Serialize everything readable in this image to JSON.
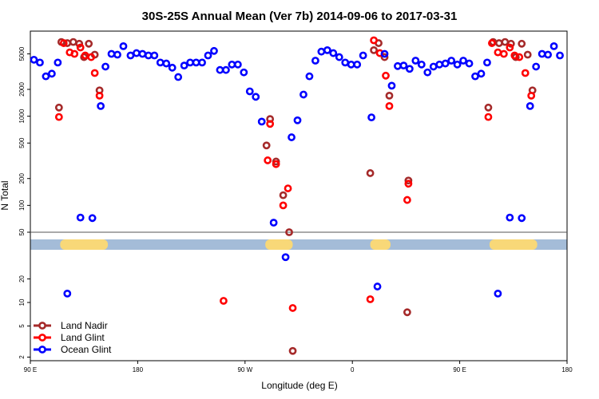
{
  "chart_data": {
    "type": "scatter",
    "title": "30S-25S Annual Mean (Ver 7b)   2014-09-06 to 2017-03-31",
    "xlabel": "Longitude (deg E)",
    "ylabel": "N Total",
    "x_ticks": [
      {
        "lon": -270,
        "label": "90 E"
      },
      {
        "lon": -180,
        "label": "180"
      },
      {
        "lon": -90,
        "label": "90 W"
      },
      {
        "lon": 0,
        "label": "0"
      },
      {
        "lon": 90,
        "label": "90 E"
      },
      {
        "lon": 180,
        "label": "180"
      }
    ],
    "xlim": [
      -270,
      180
    ],
    "y_scale": "log",
    "upper_panel": {
      "ylim": [
        50,
        9000
      ],
      "y_ticks": [
        {
          "value": 50,
          "label": "50"
        },
        {
          "value": 100,
          "label": "100"
        },
        {
          "value": 200,
          "label": "200"
        },
        {
          "value": 500,
          "label": "500"
        },
        {
          "value": 1000,
          "label": "1000"
        },
        {
          "value": 2000,
          "label": "2000"
        },
        {
          "value": 5000,
          "label": "5000"
        }
      ]
    },
    "lower_panel": {
      "ylim": [
        1.8,
        42
      ],
      "y_ticks": [
        {
          "value": 2,
          "label": "2"
        },
        {
          "value": 5,
          "label": "5"
        },
        {
          "value": 10,
          "label": "10"
        },
        {
          "value": 20,
          "label": "20"
        }
      ]
    },
    "land_sea_bar": {
      "ocean_color": "#a4bcd8",
      "land_color": "#f8d878",
      "land_segments": [
        [
          -245,
          -205
        ],
        [
          -73,
          -50
        ],
        [
          15,
          32
        ],
        [
          115,
          155
        ]
      ]
    },
    "legend_position": "bottom-left",
    "series": [
      {
        "name": "Land Nadir",
        "color": "#a52a2a",
        "points": [
          [
            -246,
            1250
          ],
          [
            -244,
            6800
          ],
          [
            -239,
            6600
          ],
          [
            -234,
            6800
          ],
          [
            -229,
            6500
          ],
          [
            -225,
            4600
          ],
          [
            -221,
            6500
          ],
          [
            -216,
            4900
          ],
          [
            -212,
            1950
          ],
          [
            -72,
            470
          ],
          [
            -69,
            930
          ],
          [
            -64,
            310
          ],
          [
            -58,
            130
          ],
          [
            -53,
            50
          ],
          [
            -50,
            2.4
          ],
          [
            15,
            230
          ],
          [
            18,
            5500
          ],
          [
            22,
            6600
          ],
          [
            27,
            4600
          ],
          [
            31,
            1700
          ],
          [
            46,
            7.5
          ],
          [
            47,
            190
          ],
          [
            114,
            1250
          ],
          [
            118,
            6800
          ],
          [
            123,
            6600
          ],
          [
            128,
            6800
          ],
          [
            133,
            6500
          ],
          [
            137,
            4600
          ],
          [
            142,
            6500
          ],
          [
            147,
            4900
          ],
          [
            151,
            1950
          ]
        ]
      },
      {
        "name": "Land Glint",
        "color": "#ff0000",
        "points": [
          [
            -246,
            980
          ],
          [
            -242,
            6600
          ],
          [
            -237,
            5200
          ],
          [
            -233,
            5000
          ],
          [
            -228,
            5900
          ],
          [
            -224,
            4800
          ],
          [
            -219,
            4600
          ],
          [
            -216,
            3050
          ],
          [
            -212,
            1700
          ],
          [
            -108,
            10.5
          ],
          [
            -71,
            320
          ],
          [
            -69,
            820
          ],
          [
            -64,
            290
          ],
          [
            -58,
            100
          ],
          [
            -54,
            155
          ],
          [
            -50,
            8.5
          ],
          [
            15,
            11
          ],
          [
            18,
            7100
          ],
          [
            23,
            5100
          ],
          [
            28,
            2850
          ],
          [
            31,
            1300
          ],
          [
            46,
            115
          ],
          [
            47,
            175
          ],
          [
            114,
            980
          ],
          [
            117,
            6600
          ],
          [
            122,
            5200
          ],
          [
            127,
            5000
          ],
          [
            132,
            5900
          ],
          [
            136,
            4800
          ],
          [
            140,
            4600
          ],
          [
            145,
            3050
          ],
          [
            150,
            1700
          ]
        ]
      },
      {
        "name": "Ocean Glint",
        "color": "#0000ff",
        "points": [
          [
            -267,
            4300
          ],
          [
            -262,
            4000
          ],
          [
            -257,
            2800
          ],
          [
            -252,
            3000
          ],
          [
            -247,
            4000
          ],
          [
            -239,
            13
          ],
          [
            -228,
            73
          ],
          [
            -218,
            72
          ],
          [
            -211,
            1300
          ],
          [
            -207,
            3600
          ],
          [
            -202,
            5000
          ],
          [
            -197,
            4900
          ],
          [
            -192,
            6100
          ],
          [
            -186,
            4800
          ],
          [
            -181,
            5100
          ],
          [
            -176,
            5000
          ],
          [
            -171,
            4800
          ],
          [
            -166,
            4800
          ],
          [
            -161,
            4000
          ],
          [
            -156,
            3900
          ],
          [
            -151,
            3500
          ],
          [
            -146,
            2750
          ],
          [
            -141,
            3700
          ],
          [
            -136,
            4000
          ],
          [
            -131,
            4000
          ],
          [
            -126,
            4000
          ],
          [
            -121,
            4800
          ],
          [
            -116,
            5400
          ],
          [
            -111,
            3300
          ],
          [
            -106,
            3300
          ],
          [
            -101,
            3800
          ],
          [
            -96,
            3800
          ],
          [
            -91,
            3100
          ],
          [
            -86,
            1900
          ],
          [
            -81,
            1650
          ],
          [
            -76,
            870
          ],
          [
            -66,
            64
          ],
          [
            -56,
            38
          ],
          [
            -51,
            580
          ],
          [
            -46,
            900
          ],
          [
            -41,
            1750
          ],
          [
            -36,
            2800
          ],
          [
            -31,
            4200
          ],
          [
            -26,
            5300
          ],
          [
            -21,
            5500
          ],
          [
            -16,
            5100
          ],
          [
            -11,
            4600
          ],
          [
            -6,
            4000
          ],
          [
            -1,
            3800
          ],
          [
            4,
            3800
          ],
          [
            9,
            4800
          ],
          [
            16,
            970
          ],
          [
            21,
            16
          ],
          [
            27,
            5000
          ],
          [
            33,
            2200
          ],
          [
            38,
            3650
          ],
          [
            43,
            3700
          ],
          [
            48,
            3400
          ],
          [
            53,
            4200
          ],
          [
            58,
            3800
          ],
          [
            63,
            3100
          ],
          [
            68,
            3600
          ],
          [
            73,
            3800
          ],
          [
            78,
            3900
          ],
          [
            83,
            4200
          ],
          [
            88,
            3800
          ],
          [
            93,
            4200
          ],
          [
            98,
            3900
          ],
          [
            103,
            2800
          ],
          [
            108,
            3000
          ],
          [
            113,
            4000
          ],
          [
            122,
            13
          ],
          [
            132,
            73
          ],
          [
            142,
            72
          ],
          [
            149,
            1300
          ],
          [
            154,
            3600
          ],
          [
            159,
            5000
          ],
          [
            164,
            4900
          ],
          [
            169,
            6100
          ],
          [
            174,
            4800
          ]
        ]
      }
    ]
  }
}
